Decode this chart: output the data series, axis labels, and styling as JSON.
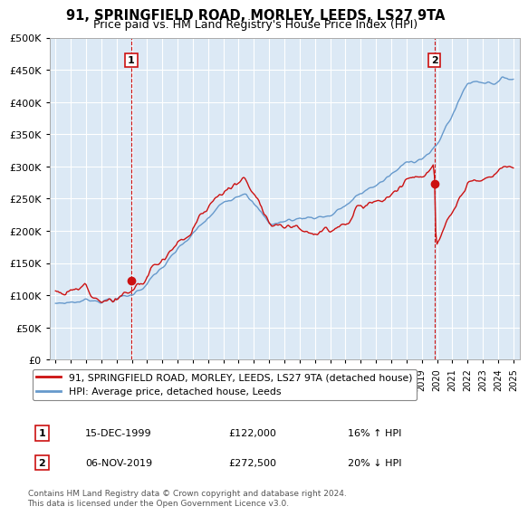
{
  "title": "91, SPRINGFIELD ROAD, MORLEY, LEEDS, LS27 9TA",
  "subtitle": "Price paid vs. HM Land Registry's House Price Index (HPI)",
  "title_fontsize": 10.5,
  "subtitle_fontsize": 9,
  "legend_line1": "91, SPRINGFIELD ROAD, MORLEY, LEEDS, LS27 9TA (detached house)",
  "legend_line2": "HPI: Average price, detached house, Leeds",
  "annotation1_label": "1",
  "annotation1_date": "15-DEC-1999",
  "annotation1_price": "£122,000",
  "annotation1_hpi": "16% ↑ HPI",
  "annotation2_label": "2",
  "annotation2_date": "06-NOV-2019",
  "annotation2_price": "£272,500",
  "annotation2_hpi": "20% ↓ HPI",
  "footer": "Contains HM Land Registry data © Crown copyright and database right 2024.\nThis data is licensed under the Open Government Licence v3.0.",
  "hpi_color": "#6699cc",
  "price_color": "#cc1111",
  "ylim": [
    0,
    500000
  ],
  "yticks": [
    0,
    50000,
    100000,
    150000,
    200000,
    250000,
    300000,
    350000,
    400000,
    450000,
    500000
  ],
  "xlim_start": 1994.6,
  "xlim_end": 2025.4,
  "sale1_x": 1999.96,
  "sale1_y": 122000,
  "sale2_x": 2019.84,
  "sale2_y": 272500,
  "background_color": "#ffffff",
  "plot_bg_color": "#dce9f5",
  "grid_color": "#ffffff",
  "annotation_box_color": "#cc1111"
}
